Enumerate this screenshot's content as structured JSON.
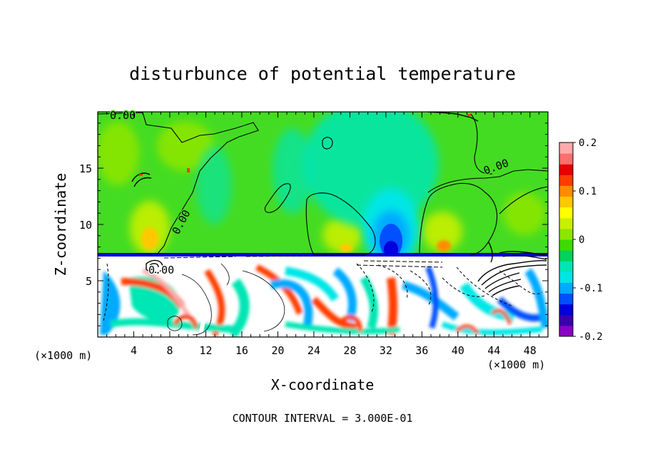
{
  "chart_data": {
    "type": "heatmap",
    "title": "disturbunce of potential temperature",
    "xlabel": "X-coordinate",
    "ylabel": "Z-coordinate",
    "x_unit_left": "(×1000 m)",
    "x_unit_right": "(×1000 m)",
    "xlim": [
      0,
      50
    ],
    "ylim": [
      0,
      20
    ],
    "x_ticks": [
      "4",
      "8",
      "12",
      "16",
      "20",
      "24",
      "28",
      "32",
      "36",
      "40",
      "44",
      "48"
    ],
    "y_ticks": [
      "5",
      "10",
      "15"
    ],
    "contour_labels": [
      "0.00",
      "0.00",
      "0.00",
      "0.00"
    ],
    "footer": "CONTOUR INTERVAL = 3.000E-01",
    "colorbar": {
      "ticks": [
        "0.2",
        "0.1",
        "0",
        "-0.1",
        "-0.2"
      ],
      "range": [
        -0.2,
        0.2
      ],
      "colors": [
        "#8b00c8",
        "#3a00b0",
        "#0000dc",
        "#0050ff",
        "#00aaff",
        "#00e6e6",
        "#00e6b4",
        "#00d25a",
        "#3cdc00",
        "#8ce600",
        "#c8f000",
        "#ffff00",
        "#ffc800",
        "#ff8c00",
        "#ff3c00",
        "#e60000",
        "#ff6e6e",
        "#ffaaaa"
      ]
    }
  }
}
